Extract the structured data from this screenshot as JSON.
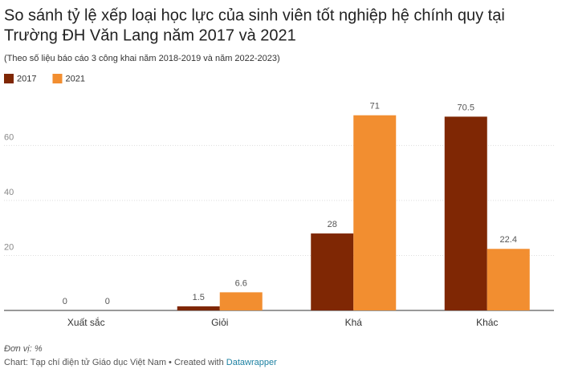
{
  "chart_data": {
    "type": "bar",
    "title": [
      "So sánh tỷ lệ xếp loại học lực của sinh viên tốt nghiệp hệ chính quy tại",
      "Trường ĐH Văn Lang năm 2017 và 2021"
    ],
    "subtitle": "(Theo số liệu báo cáo 3 công khai năm 2018-2019 và năm 2022-2023)",
    "categories": [
      "Xuất sắc",
      "Giỏi",
      "Khá",
      "Khác"
    ],
    "series": [
      {
        "name": "2017",
        "color": "#7f2704",
        "values": [
          0,
          1.5,
          28,
          70.5
        ]
      },
      {
        "name": "2021",
        "color": "#f28e30",
        "values": [
          0,
          6.6,
          71,
          22.4
        ]
      }
    ],
    "ylim": [
      0,
      75
    ],
    "yticks": [
      20,
      40,
      60
    ],
    "grid": true,
    "note": "Đơn vị: %",
    "source": "Chart: Tạp chí điện tử Giáo dục Việt Nam • Created with",
    "credit": "Datawrapper"
  }
}
